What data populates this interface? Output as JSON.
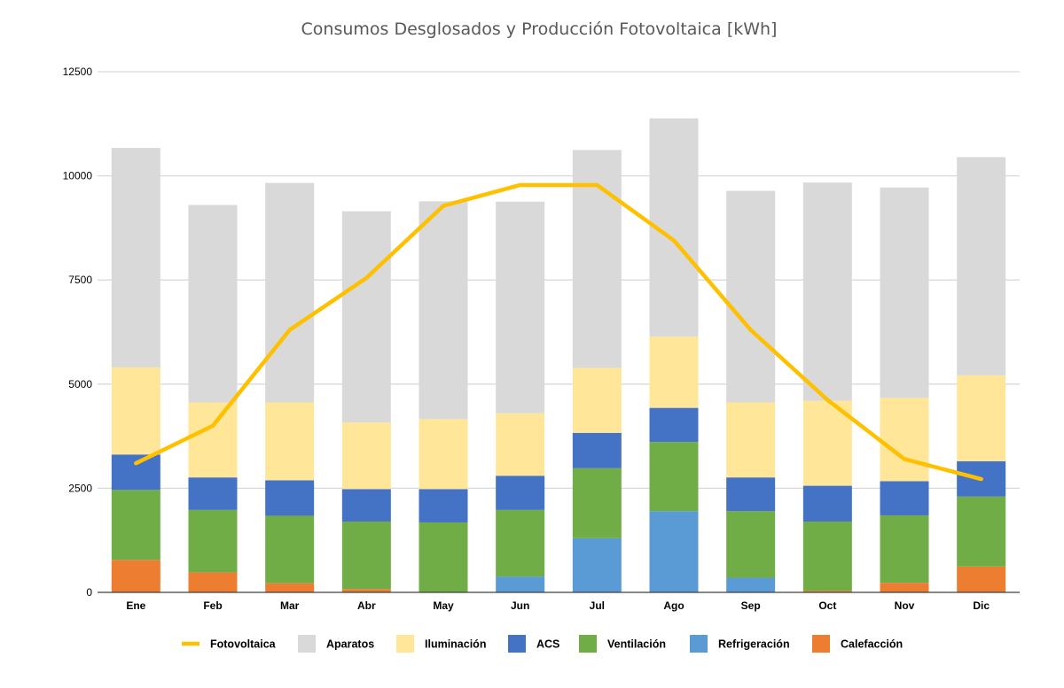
{
  "chart_data": {
    "type": "bar",
    "stacked": true,
    "title": "Consumos Desglosados y Producción Fotovoltaica [kWh]",
    "xlabel": "",
    "ylabel": "",
    "ylim": [
      0,
      12500
    ],
    "yticks": [
      0,
      2500,
      5000,
      7500,
      10000,
      12500
    ],
    "grid": true,
    "legend_position": "bottom",
    "categories": [
      "Ene",
      "Feb",
      "Mar",
      "Abr",
      "May",
      "Jun",
      "Jul",
      "Ago",
      "Sep",
      "Oct",
      "Nov",
      "Dic"
    ],
    "series": [
      {
        "name": "Calefacción",
        "kind": "bar",
        "color": "#ED7D31",
        "values": [
          780,
          480,
          220,
          80,
          0,
          0,
          0,
          0,
          0,
          40,
          230,
          620
        ]
      },
      {
        "name": "Refrigeración",
        "kind": "bar",
        "color": "#5B9BD5",
        "values": [
          0,
          0,
          0,
          0,
          0,
          380,
          1300,
          1950,
          350,
          0,
          0,
          0
        ]
      },
      {
        "name": "Ventilación",
        "kind": "bar",
        "color": "#70AD47",
        "values": [
          1680,
          1500,
          1620,
          1620,
          1680,
          1600,
          1680,
          1660,
          1600,
          1660,
          1620,
          1680
        ]
      },
      {
        "name": "ACS",
        "kind": "bar",
        "color": "#4472C4",
        "values": [
          850,
          780,
          850,
          780,
          800,
          820,
          850,
          820,
          810,
          860,
          820,
          850
        ]
      },
      {
        "name": "Iluminación",
        "kind": "bar",
        "color": "#FFE699",
        "values": [
          2090,
          1800,
          1870,
          1600,
          1680,
          1500,
          1560,
          1710,
          1800,
          2040,
          2000,
          2060
        ]
      },
      {
        "name": "Aparatos",
        "kind": "bar",
        "color": "#D9D9D9",
        "values": [
          5270,
          4740,
          5270,
          5070,
          5230,
          5080,
          5230,
          5240,
          5080,
          5240,
          5050,
          5240
        ]
      },
      {
        "name": "Fotovoltaica",
        "kind": "line",
        "color": "#FFC000",
        "values": [
          3100,
          4000,
          6300,
          7550,
          9280,
          9780,
          9780,
          8450,
          6300,
          4620,
          3200,
          2720
        ]
      }
    ],
    "legend_order": [
      "Fotovoltaica",
      "Aparatos",
      "Iluminación",
      "ACS",
      "Ventilación",
      "Refrigeración",
      "Calefacción"
    ]
  }
}
